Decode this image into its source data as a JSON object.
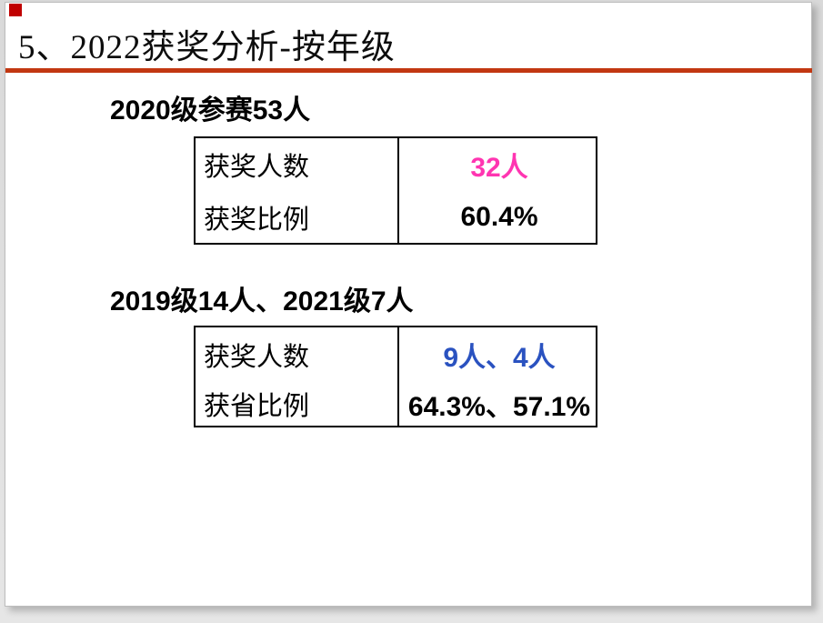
{
  "slide": {
    "title": "5、2022获奖分析-按年级",
    "accent_line_color": "#C23711",
    "corner_square_color": "#C00000"
  },
  "sections": [
    {
      "heading": "2020级参赛53人",
      "table": {
        "rows": [
          {
            "label": "获奖人数",
            "value": "32人",
            "value_color": "#FF35B1"
          },
          {
            "label": "获奖比例",
            "value": "60.4%",
            "value_color": "#000000"
          }
        ]
      }
    },
    {
      "heading": "2019级14人、2021级7人",
      "table": {
        "rows": [
          {
            "label": "获奖人数",
            "value": "9人、4人",
            "value_color": "#2A52C0"
          },
          {
            "label": "获省比例",
            "value": "64.3%、57.1%",
            "value_color": "#000000"
          }
        ]
      }
    }
  ]
}
